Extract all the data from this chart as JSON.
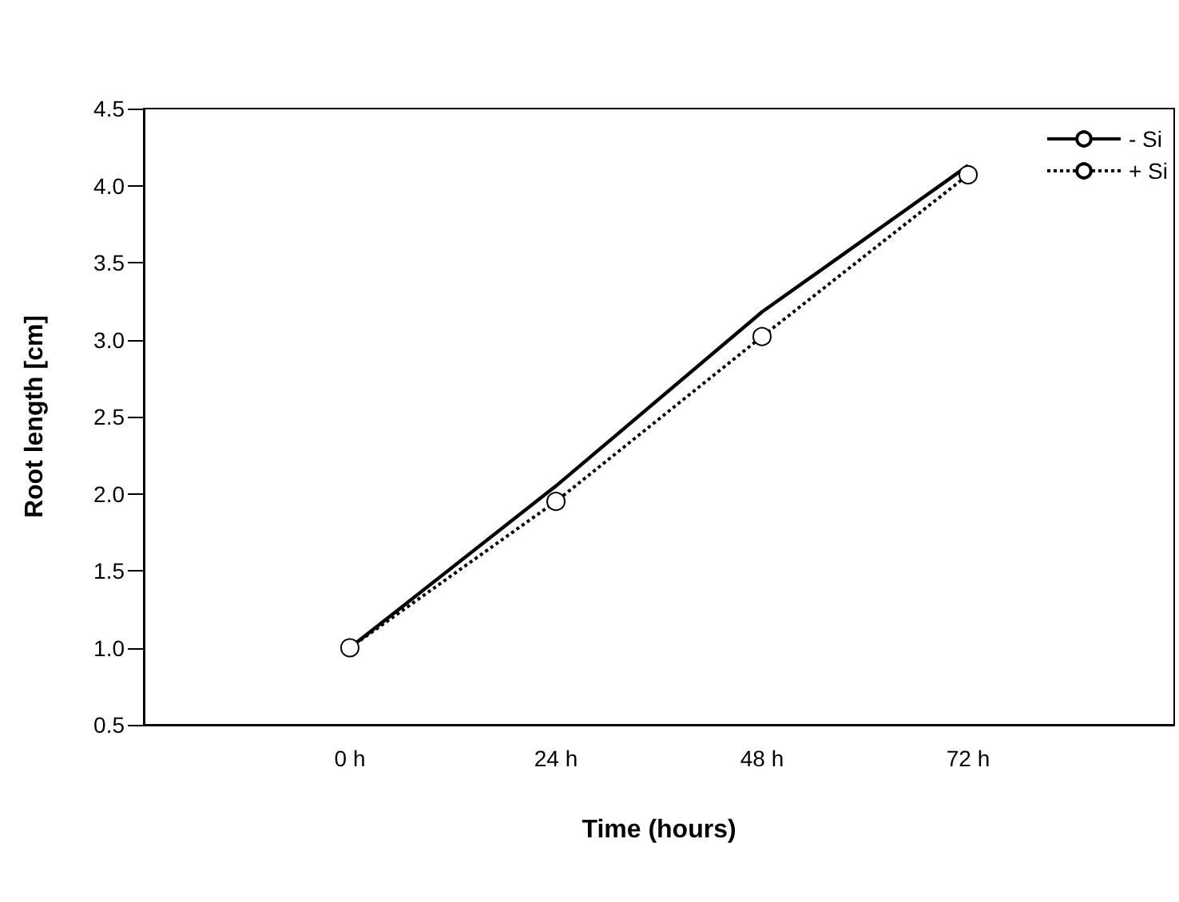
{
  "chart_data": {
    "type": "line",
    "xlabel": "Time (hours)",
    "ylabel": "Root length [cm]",
    "categories": [
      null,
      "0 h",
      "24 h",
      "48 h",
      "72 h",
      null
    ],
    "series": [
      {
        "name": "- Si",
        "color": "#000000",
        "values": [
          null,
          1.0,
          2.05,
          3.18,
          4.13,
          null
        ],
        "marker": "none",
        "line_style": "solid"
      },
      {
        "name": "+ Si",
        "color": "#000000",
        "values": [
          null,
          1.0,
          1.95,
          3.02,
          4.07,
          null
        ],
        "marker": "circle",
        "line_style": "dotted"
      }
    ],
    "ylim": [
      0.5,
      4.5
    ],
    "yticks": [
      0.5,
      {
        "value": 1,
        "label": "1.0"
      },
      1.5,
      {
        "value": 2,
        "label": "2.0"
      },
      2.5,
      {
        "value": 3,
        "label": "3.0"
      },
      3.5,
      {
        "value": 4,
        "label": "4.0"
      },
      4.5
    ],
    "grid": false,
    "legend": "top right"
  }
}
